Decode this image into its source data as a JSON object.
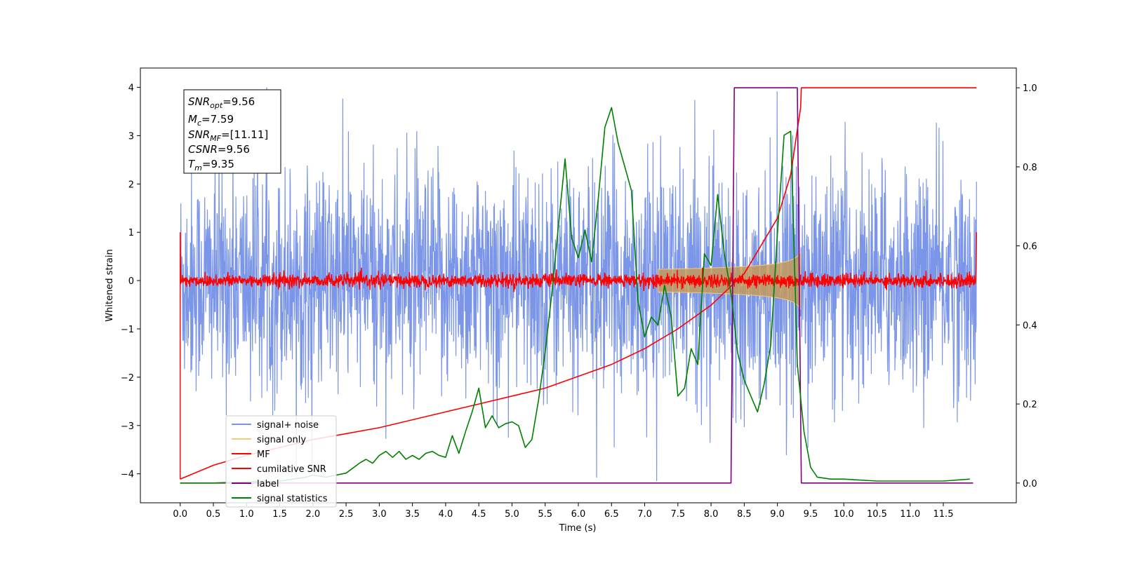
{
  "chart_data": {
    "type": "line",
    "xlabel": "Time (s)",
    "ylabel": "Whitened strain",
    "xlim": [
      -0.6,
      12.6
    ],
    "ylim": [
      -4.6,
      4.4
    ],
    "y2lim": [
      -0.05,
      1.05
    ],
    "x_ticks": [
      "0.0",
      "0.5",
      "1.0",
      "1.5",
      "2.0",
      "2.5",
      "3.0",
      "3.5",
      "4.0",
      "4.5",
      "5.0",
      "5.5",
      "6.0",
      "6.5",
      "7.0",
      "7.5",
      "8.0",
      "8.5",
      "9.0",
      "9.5",
      "10.0",
      "10.5",
      "11.0",
      "11.5"
    ],
    "y_ticks": [
      "−4",
      "−3",
      "−2",
      "−1",
      "0",
      "1",
      "2",
      "3",
      "4"
    ],
    "y2_ticks": [
      "0.0",
      "0.2",
      "0.4",
      "0.6",
      "0.8",
      "1.0"
    ],
    "info_box": {
      "snr_opt": "=9.56",
      "mc": "=7.59",
      "snr_mf": "=[11.11]",
      "csnr": "=9.56",
      "tm": "=9.35"
    },
    "legend": [
      "signal+ noise",
      "signal only",
      "MF",
      "cumilative SNR",
      "label",
      "signal statistics"
    ],
    "series": [
      {
        "name": "signal+ noise",
        "axis": "left",
        "color": "#7b96e8",
        "noise_sd": 1.15,
        "x_range": [
          0,
          12
        ]
      },
      {
        "name": "signal only",
        "axis": "left",
        "color": "#f5c87a",
        "chirp_peak_amplitude": 0.6,
        "merger_time": 9.35
      },
      {
        "name": "MF",
        "axis": "left",
        "color": "#ff0000",
        "noise_sd": 0.07,
        "x_range": [
          0,
          12
        ]
      },
      {
        "name": "cumilative SNR",
        "axis": "right",
        "color": "#ff0000",
        "x": [
          0,
          0.5,
          1,
          1.5,
          2,
          2.5,
          3,
          3.5,
          4,
          4.5,
          5,
          5.5,
          6,
          6.5,
          7,
          7.5,
          8,
          8.5,
          9,
          9.2,
          9.35,
          9.36,
          12
        ],
        "y": [
          0.01,
          0.045,
          0.07,
          0.09,
          0.11,
          0.125,
          0.14,
          0.16,
          0.18,
          0.2,
          0.22,
          0.24,
          0.27,
          0.3,
          0.34,
          0.39,
          0.45,
          0.53,
          0.67,
          0.78,
          0.95,
          1.0,
          1.0
        ]
      },
      {
        "name": "label",
        "axis": "right",
        "color": "#800080",
        "x": [
          0,
          8.3,
          8.35,
          9.3,
          9.36,
          11.95
        ],
        "y": [
          0,
          0,
          1,
          1,
          0,
          0
        ]
      },
      {
        "name": "signal statistics",
        "axis": "right",
        "color": "#008000",
        "x": [
          0,
          0.5,
          1,
          1.5,
          1.9,
          2.0,
          2.2,
          2.5,
          2.7,
          2.8,
          2.9,
          3.0,
          3.1,
          3.2,
          3.3,
          3.4,
          3.5,
          3.6,
          3.7,
          3.8,
          3.9,
          4.0,
          4.1,
          4.2,
          4.3,
          4.4,
          4.5,
          4.6,
          4.7,
          4.8,
          4.9,
          5.0,
          5.1,
          5.2,
          5.3,
          5.4,
          5.5,
          5.6,
          5.7,
          5.8,
          5.9,
          6.0,
          6.1,
          6.2,
          6.3,
          6.4,
          6.5,
          6.6,
          6.7,
          6.8,
          6.9,
          7.0,
          7.1,
          7.2,
          7.3,
          7.4,
          7.5,
          7.6,
          7.7,
          7.8,
          7.9,
          8.0,
          8.1,
          8.2,
          8.3,
          8.4,
          8.5,
          8.6,
          8.7,
          8.8,
          8.9,
          9.0,
          9.1,
          9.2,
          9.3,
          9.4,
          9.5,
          9.6,
          9.8,
          10.0,
          10.5,
          11.0,
          11.5,
          11.9
        ],
        "y": [
          0,
          0,
          0.003,
          0.005,
          0.015,
          0.02,
          0.015,
          0.025,
          0.05,
          0.06,
          0.05,
          0.07,
          0.08,
          0.065,
          0.08,
          0.06,
          0.07,
          0.06,
          0.075,
          0.08,
          0.07,
          0.065,
          0.12,
          0.075,
          0.13,
          0.18,
          0.24,
          0.14,
          0.17,
          0.14,
          0.15,
          0.155,
          0.145,
          0.09,
          0.11,
          0.21,
          0.33,
          0.48,
          0.65,
          0.82,
          0.62,
          0.57,
          0.64,
          0.56,
          0.72,
          0.9,
          0.95,
          0.86,
          0.8,
          0.74,
          0.46,
          0.37,
          0.42,
          0.4,
          0.5,
          0.42,
          0.22,
          0.24,
          0.34,
          0.3,
          0.58,
          0.55,
          0.73,
          0.58,
          0.48,
          0.33,
          0.26,
          0.22,
          0.18,
          0.25,
          0.35,
          0.63,
          0.88,
          0.89,
          0.3,
          0.13,
          0.04,
          0.015,
          0.01,
          0.01,
          0.005,
          0.005,
          0.005,
          0.01
        ]
      }
    ]
  }
}
